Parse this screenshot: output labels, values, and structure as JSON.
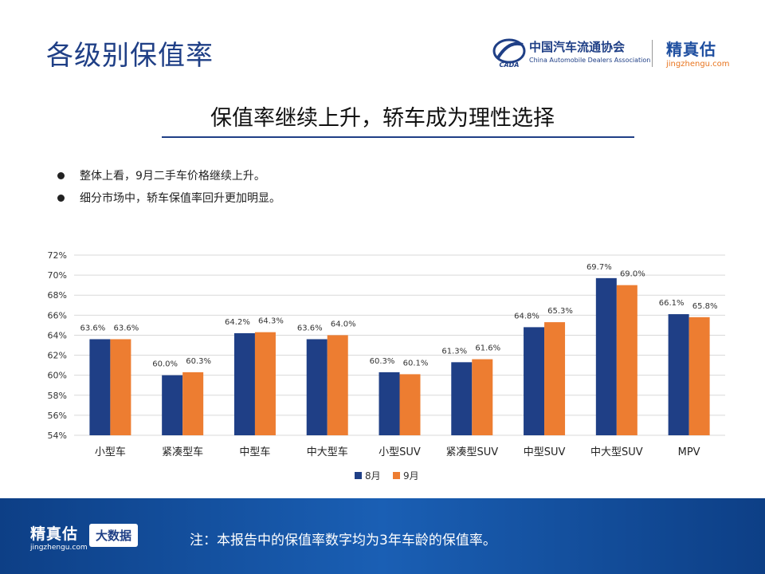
{
  "page": {
    "title": "各级别保值率",
    "headline": "保值率继续上升，轿车成为理性选择",
    "bullets": [
      "整体上看，9月二手车价格继续上升。",
      "细分市场中，轿车保值率回升更加明显。"
    ]
  },
  "logos": {
    "cada_cn": "中国汽车流通协会",
    "cada_en": "China Automobile Dealers Association",
    "cada_mark_text": "CADA",
    "jzg_cn": "精真估",
    "jzg_url": "jingzhengu.com"
  },
  "footer": {
    "brand_cn": "精真估",
    "brand_url": "jingzhengu.com",
    "badge": "大数据",
    "note": "注：本报告中的保值率数字均为3年车龄的保值率。"
  },
  "colors": {
    "aug": "#1f3f86",
    "sep": "#ed7d31",
    "grid": "#d9d9d9"
  },
  "chart_data": {
    "type": "bar",
    "categories": [
      "小型车",
      "紧凑型车",
      "中型车",
      "中大型车",
      "小型SUV",
      "紧凑型SUV",
      "中型SUV",
      "中大型SUV",
      "MPV"
    ],
    "series": [
      {
        "name": "8月",
        "values": [
          63.6,
          60.0,
          64.2,
          63.6,
          60.3,
          61.3,
          64.8,
          69.7,
          66.1
        ],
        "labels": [
          "63.6%",
          "60.0%",
          "64.2%",
          "63.6%",
          "60.3%",
          "61.3%",
          "64.8%",
          "69.7%",
          "66.1%"
        ]
      },
      {
        "name": "9月",
        "values": [
          63.6,
          60.3,
          64.3,
          64.0,
          60.1,
          61.6,
          65.3,
          69.0,
          65.8
        ],
        "labels": [
          "63.6%",
          "60.3%",
          "64.3%",
          "64.0%",
          "60.1%",
          "61.6%",
          "65.3%",
          "69.0%",
          "65.8%"
        ]
      }
    ],
    "ylim": [
      54,
      72
    ],
    "yticks": [
      "54%",
      "56%",
      "58%",
      "60%",
      "62%",
      "64%",
      "66%",
      "68%",
      "70%",
      "72%"
    ],
    "grid": true,
    "legend": "bottom"
  }
}
